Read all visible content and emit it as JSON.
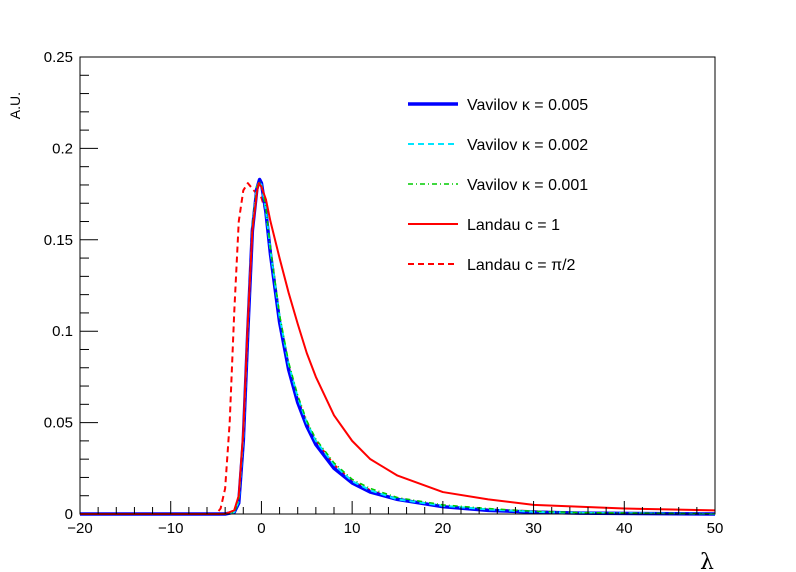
{
  "chart_data": {
    "type": "line",
    "title": "",
    "xlabel": "λ",
    "ylabel": "A.U.",
    "xlim": [
      -20,
      50
    ],
    "ylim": [
      0,
      0.25
    ],
    "grid": false,
    "legend_position": "top-right",
    "x_ticks": [
      -20,
      -10,
      0,
      10,
      20,
      30,
      40,
      50
    ],
    "x_tick_labels": [
      "−20",
      "−10",
      "0",
      "10",
      "20",
      "30",
      "40",
      "50"
    ],
    "y_ticks": [
      0,
      0.05,
      0.1,
      0.15,
      0.2,
      0.25
    ],
    "y_tick_labels": [
      "0",
      "0.05",
      "0.1",
      "0.15",
      "0.2",
      "0.25"
    ],
    "series": [
      {
        "name": "Vavilov κ = 0.005",
        "color": "#0000ff",
        "style": "solid-thick",
        "x": [
          -20,
          -4,
          -3,
          -2.5,
          -2,
          -1.5,
          -1,
          -0.5,
          -0.2,
          0,
          0.5,
          1,
          2,
          3,
          4,
          5,
          6,
          8,
          10,
          12,
          15,
          20,
          25,
          30,
          35,
          50
        ],
        "y": [
          0,
          0,
          0.001,
          0.006,
          0.04,
          0.1,
          0.155,
          0.178,
          0.183,
          0.181,
          0.165,
          0.142,
          0.105,
          0.079,
          0.061,
          0.048,
          0.038,
          0.025,
          0.017,
          0.012,
          0.008,
          0.004,
          0.002,
          0.001,
          0.0005,
          0
        ]
      },
      {
        "name": "Vavilov κ = 0.002",
        "color": "#00e5ff",
        "style": "dashed",
        "x": [
          -20,
          -4,
          -3,
          -2.5,
          -2,
          -1.5,
          -1,
          -0.5,
          -0.2,
          0,
          0.5,
          1,
          2,
          3,
          4,
          5,
          6,
          8,
          10,
          12,
          15,
          20,
          25,
          30,
          35,
          50
        ],
        "y": [
          0,
          0,
          0.001,
          0.007,
          0.042,
          0.103,
          0.157,
          0.179,
          0.182,
          0.18,
          0.166,
          0.144,
          0.108,
          0.082,
          0.064,
          0.05,
          0.04,
          0.027,
          0.018,
          0.013,
          0.008,
          0.0045,
          0.0025,
          0.0012,
          0.0006,
          0
        ]
      },
      {
        "name": "Vavilov κ = 0.001",
        "color": "#00cc00",
        "style": "dash-dot",
        "x": [
          -20,
          -4,
          -3,
          -2.5,
          -2,
          -1.5,
          -1,
          -0.5,
          -0.2,
          0,
          0.5,
          1,
          2,
          3,
          4,
          5,
          6,
          8,
          10,
          12,
          15,
          20,
          25,
          30,
          35,
          50
        ],
        "y": [
          0,
          0,
          0.001,
          0.007,
          0.043,
          0.104,
          0.158,
          0.179,
          0.182,
          0.18,
          0.167,
          0.145,
          0.109,
          0.083,
          0.065,
          0.051,
          0.041,
          0.028,
          0.019,
          0.014,
          0.009,
          0.005,
          0.003,
          0.0015,
          0.0008,
          0.0001
        ]
      },
      {
        "name": "Landau c = 1",
        "color": "#ff0000",
        "style": "solid",
        "x": [
          -20,
          -4,
          -3,
          -2.5,
          -2,
          -1.5,
          -1,
          -0.5,
          -0.3,
          0,
          0.5,
          1,
          2,
          3,
          4,
          5,
          6,
          8,
          10,
          12,
          15,
          20,
          25,
          30,
          40,
          50
        ],
        "y": [
          0,
          0,
          0.002,
          0.01,
          0.045,
          0.105,
          0.155,
          0.176,
          0.181,
          0.179,
          0.172,
          0.16,
          0.14,
          0.121,
          0.104,
          0.088,
          0.075,
          0.054,
          0.04,
          0.03,
          0.021,
          0.012,
          0.008,
          0.005,
          0.003,
          0.002
        ]
      },
      {
        "name": "Landau c = π/2",
        "color": "#ff0000",
        "style": "dashed",
        "x": [
          -20,
          -5,
          -4.5,
          -4,
          -3.5,
          -3,
          -2.5,
          -2,
          -1.5,
          -1,
          -0.5,
          0,
          0.5,
          1,
          2,
          3,
          4,
          5,
          6,
          8,
          10,
          12,
          15,
          20,
          25,
          30,
          35,
          50
        ],
        "y": [
          0,
          0,
          0.003,
          0.014,
          0.05,
          0.11,
          0.16,
          0.177,
          0.181,
          0.178,
          0.175,
          0.173,
          0.165,
          0.145,
          0.108,
          0.081,
          0.063,
          0.05,
          0.04,
          0.027,
          0.018,
          0.013,
          0.008,
          0.004,
          0.0025,
          0.0015,
          0.0008,
          0.0001
        ]
      }
    ]
  }
}
